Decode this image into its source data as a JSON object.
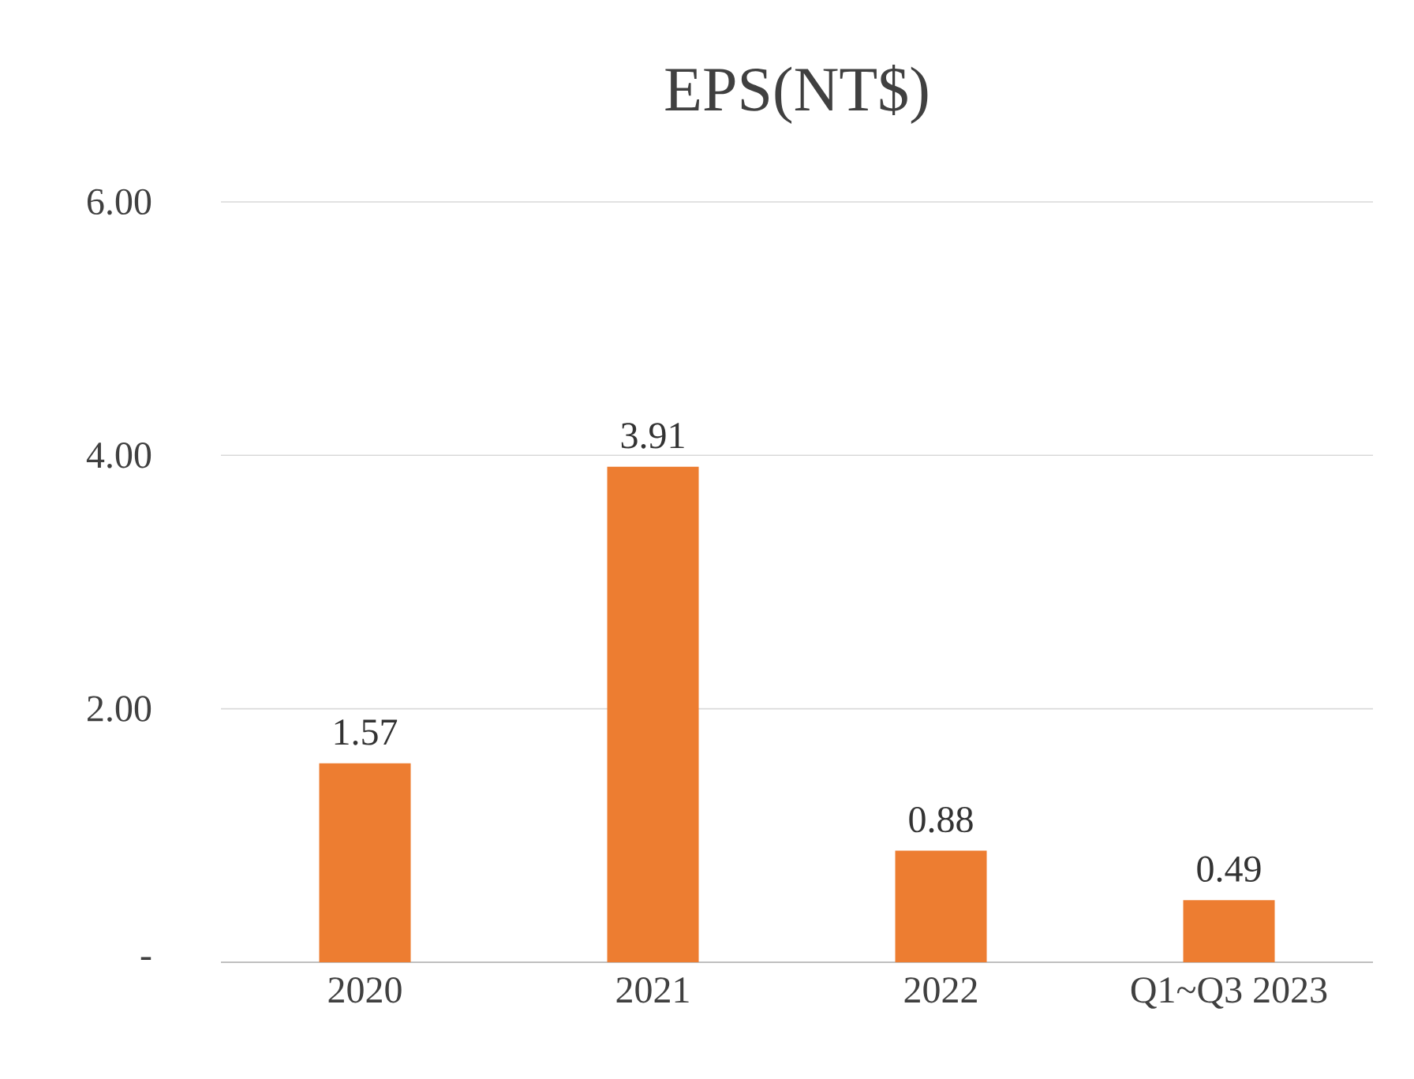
{
  "chart_data": {
    "type": "bar",
    "title": "EPS(NT$)",
    "categories": [
      "2020",
      "2021",
      "2022",
      "Q1~Q3 2023"
    ],
    "values": [
      1.57,
      3.91,
      0.88,
      0.49
    ],
    "color": "#ed7d31",
    "ylim": [
      0,
      6
    ],
    "yticks": [
      {
        "value": 0,
        "label": "-"
      },
      {
        "value": 2,
        "label": "2.00"
      },
      {
        "value": 4,
        "label": "4.00"
      },
      {
        "value": 6,
        "label": "6.00"
      }
    ],
    "grid": "y",
    "data_labels": true
  }
}
